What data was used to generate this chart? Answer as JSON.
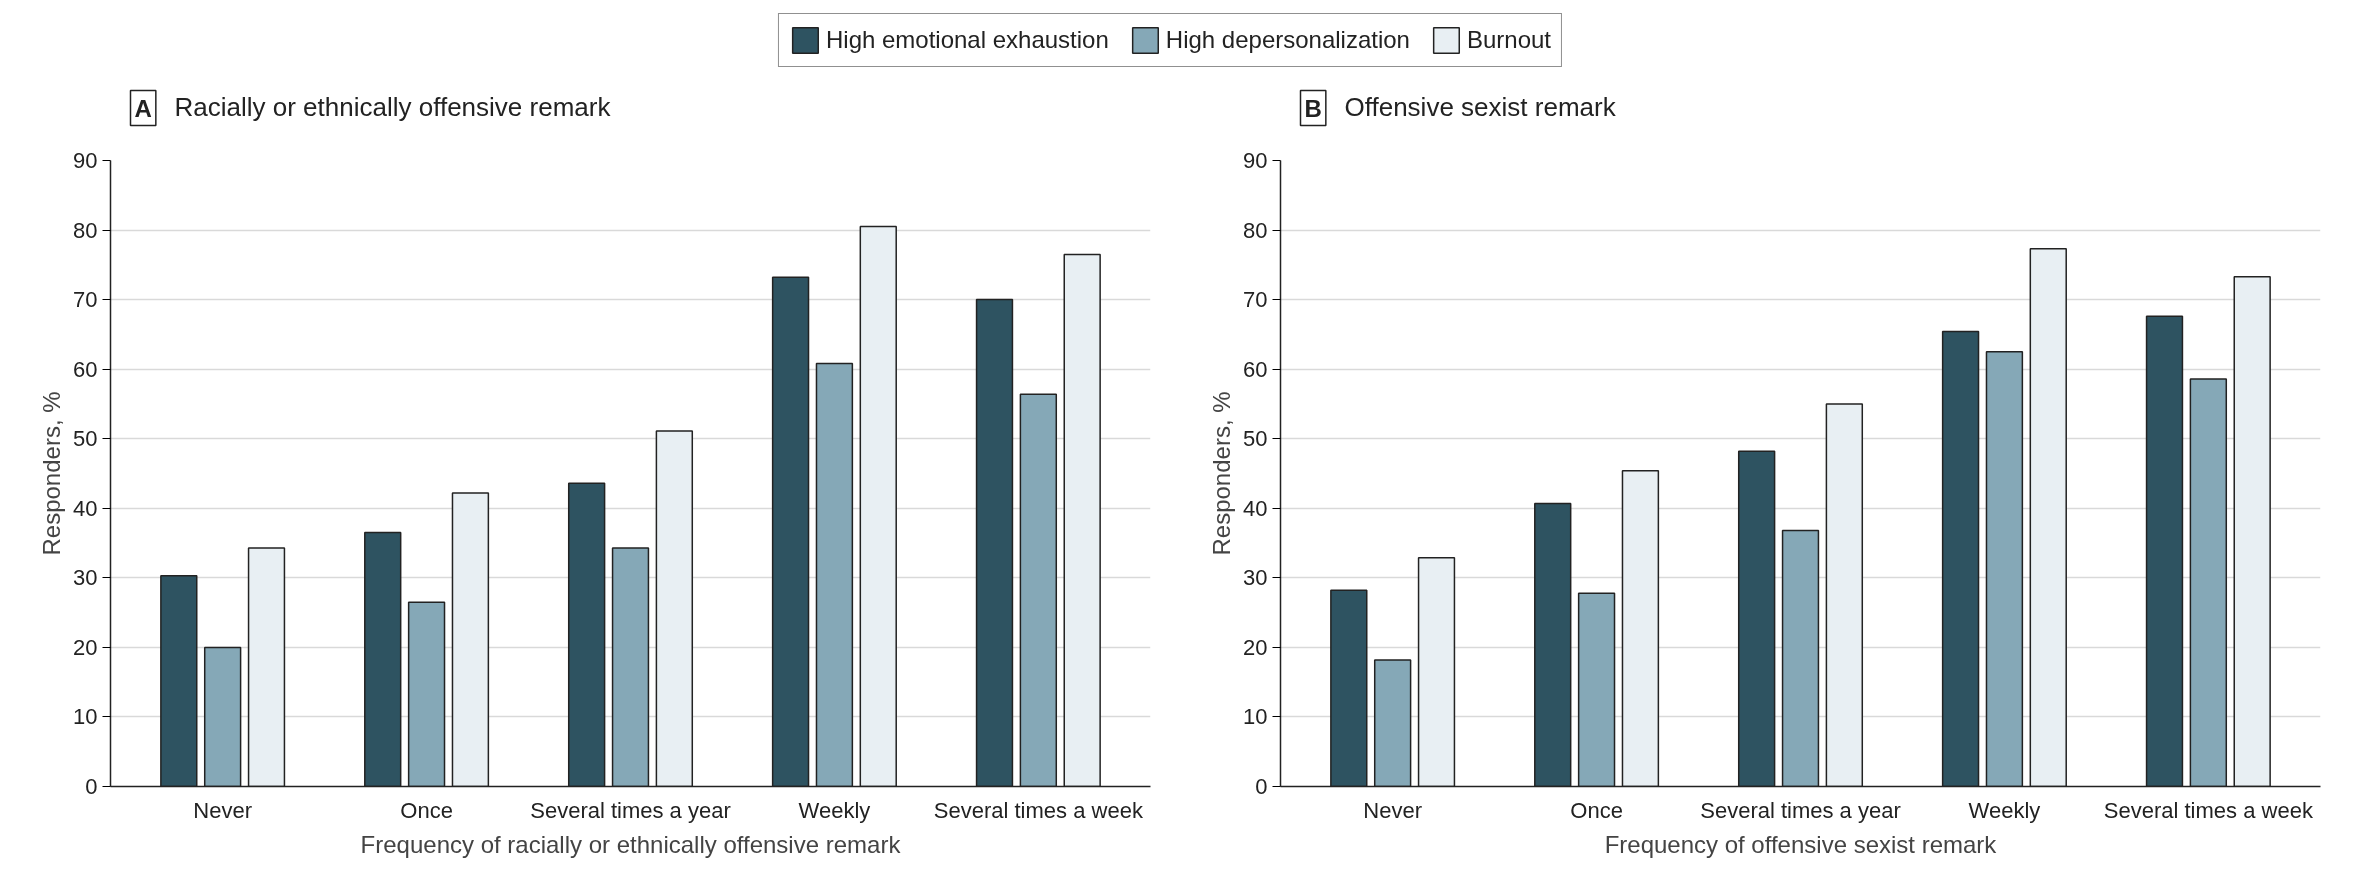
{
  "chart_data": [
    {
      "type": "bar",
      "title": "Racially or ethnically offensive remark",
      "annotations": [
        "A"
      ],
      "xlabel": "Frequency of racially or ethnically offensive remark",
      "ylabel": "Responders, %",
      "categories": [
        "Never",
        "Once",
        "Several times a year",
        "Weekly",
        "Several times a week"
      ],
      "series": [
        {
          "name": "High emotional exhaustion",
          "color": "#2e5361",
          "values": [
            30.3,
            36.5,
            43.6,
            73.2,
            70.0
          ]
        },
        {
          "name": "High depersonalization",
          "color": "#85a8b7",
          "values": [
            20.0,
            26.5,
            34.3,
            60.8,
            56.4
          ]
        },
        {
          "name": "Burnout",
          "color": "#e8eff3",
          "values": [
            34.3,
            42.2,
            51.1,
            80.5,
            76.5
          ]
        }
      ],
      "ylim": [
        0,
        90
      ],
      "yticks": [
        0,
        10,
        20,
        30,
        40,
        50,
        60,
        70,
        80,
        90
      ],
      "grid": "y",
      "legend": "top"
    },
    {
      "type": "bar",
      "title": "Offensive sexist remark",
      "annotations": [
        "B"
      ],
      "xlabel": "Frequency of offensive sexist remark",
      "ylabel": "Responders, %",
      "categories": [
        "Never",
        "Once",
        "Several times a year",
        "Weekly",
        "Several times a week"
      ],
      "series": [
        {
          "color": "#2e5361",
          "values": [
            28.2,
            40.7,
            48.2,
            65.4,
            67.6
          ]
        },
        {
          "color": "#85a8b7",
          "values": [
            18.2,
            27.8,
            36.8,
            62.5,
            58.6
          ]
        },
        {
          "color": "#e8eff3",
          "values": [
            32.9,
            45.4,
            55.0,
            77.3,
            73.3
          ]
        }
      ],
      "ylim": [
        0,
        90
      ],
      "yticks": [
        0,
        10,
        20,
        30,
        40,
        50,
        60,
        70,
        80,
        90
      ],
      "grid": "y"
    }
  ]
}
